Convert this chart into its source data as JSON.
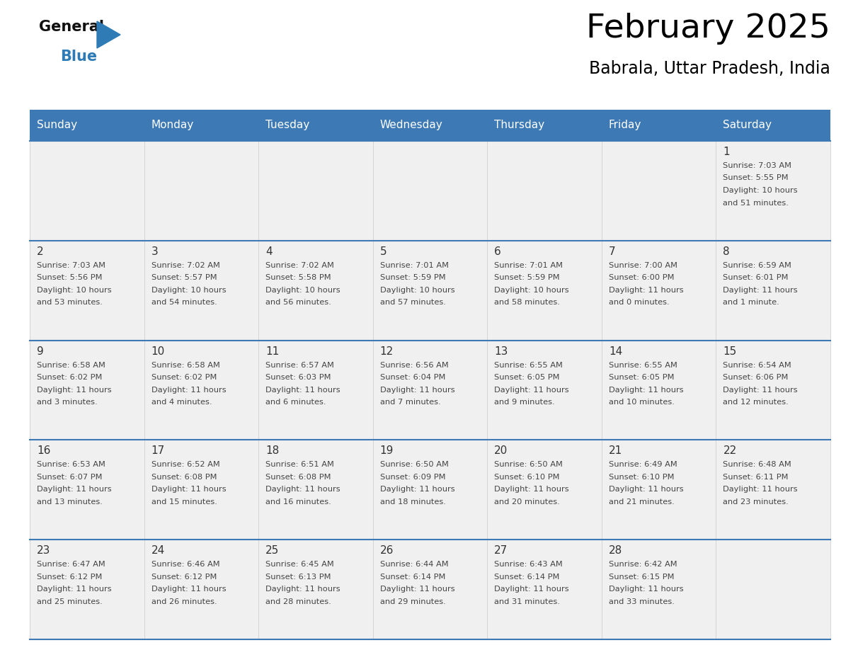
{
  "title": "February 2025",
  "subtitle": "Babrala, Uttar Pradesh, India",
  "days_of_week": [
    "Sunday",
    "Monday",
    "Tuesday",
    "Wednesday",
    "Thursday",
    "Friday",
    "Saturday"
  ],
  "header_bg_color": "#3d7ab5",
  "header_text_color": "#ffffff",
  "cell_bg_color": "#f0f0f0",
  "separator_color": "#3d7ab5",
  "day_num_color": "#333333",
  "text_color": "#444444",
  "logo_general_color": "#111111",
  "logo_blue_color": "#2e7bb5",
  "calendar": [
    [
      null,
      null,
      null,
      null,
      null,
      null,
      {
        "day": 1,
        "sunrise": "7:03 AM",
        "sunset": "5:55 PM",
        "daylight": "10 hours and 51 minutes."
      }
    ],
    [
      {
        "day": 2,
        "sunrise": "7:03 AM",
        "sunset": "5:56 PM",
        "daylight": "10 hours and 53 minutes."
      },
      {
        "day": 3,
        "sunrise": "7:02 AM",
        "sunset": "5:57 PM",
        "daylight": "10 hours and 54 minutes."
      },
      {
        "day": 4,
        "sunrise": "7:02 AM",
        "sunset": "5:58 PM",
        "daylight": "10 hours and 56 minutes."
      },
      {
        "day": 5,
        "sunrise": "7:01 AM",
        "sunset": "5:59 PM",
        "daylight": "10 hours and 57 minutes."
      },
      {
        "day": 6,
        "sunrise": "7:01 AM",
        "sunset": "5:59 PM",
        "daylight": "10 hours and 58 minutes."
      },
      {
        "day": 7,
        "sunrise": "7:00 AM",
        "sunset": "6:00 PM",
        "daylight": "11 hours and 0 minutes."
      },
      {
        "day": 8,
        "sunrise": "6:59 AM",
        "sunset": "6:01 PM",
        "daylight": "11 hours and 1 minute."
      }
    ],
    [
      {
        "day": 9,
        "sunrise": "6:58 AM",
        "sunset": "6:02 PM",
        "daylight": "11 hours and 3 minutes."
      },
      {
        "day": 10,
        "sunrise": "6:58 AM",
        "sunset": "6:02 PM",
        "daylight": "11 hours and 4 minutes."
      },
      {
        "day": 11,
        "sunrise": "6:57 AM",
        "sunset": "6:03 PM",
        "daylight": "11 hours and 6 minutes."
      },
      {
        "day": 12,
        "sunrise": "6:56 AM",
        "sunset": "6:04 PM",
        "daylight": "11 hours and 7 minutes."
      },
      {
        "day": 13,
        "sunrise": "6:55 AM",
        "sunset": "6:05 PM",
        "daylight": "11 hours and 9 minutes."
      },
      {
        "day": 14,
        "sunrise": "6:55 AM",
        "sunset": "6:05 PM",
        "daylight": "11 hours and 10 minutes."
      },
      {
        "day": 15,
        "sunrise": "6:54 AM",
        "sunset": "6:06 PM",
        "daylight": "11 hours and 12 minutes."
      }
    ],
    [
      {
        "day": 16,
        "sunrise": "6:53 AM",
        "sunset": "6:07 PM",
        "daylight": "11 hours and 13 minutes."
      },
      {
        "day": 17,
        "sunrise": "6:52 AM",
        "sunset": "6:08 PM",
        "daylight": "11 hours and 15 minutes."
      },
      {
        "day": 18,
        "sunrise": "6:51 AM",
        "sunset": "6:08 PM",
        "daylight": "11 hours and 16 minutes."
      },
      {
        "day": 19,
        "sunrise": "6:50 AM",
        "sunset": "6:09 PM",
        "daylight": "11 hours and 18 minutes."
      },
      {
        "day": 20,
        "sunrise": "6:50 AM",
        "sunset": "6:10 PM",
        "daylight": "11 hours and 20 minutes."
      },
      {
        "day": 21,
        "sunrise": "6:49 AM",
        "sunset": "6:10 PM",
        "daylight": "11 hours and 21 minutes."
      },
      {
        "day": 22,
        "sunrise": "6:48 AM",
        "sunset": "6:11 PM",
        "daylight": "11 hours and 23 minutes."
      }
    ],
    [
      {
        "day": 23,
        "sunrise": "6:47 AM",
        "sunset": "6:12 PM",
        "daylight": "11 hours and 25 minutes."
      },
      {
        "day": 24,
        "sunrise": "6:46 AM",
        "sunset": "6:12 PM",
        "daylight": "11 hours and 26 minutes."
      },
      {
        "day": 25,
        "sunrise": "6:45 AM",
        "sunset": "6:13 PM",
        "daylight": "11 hours and 28 minutes."
      },
      {
        "day": 26,
        "sunrise": "6:44 AM",
        "sunset": "6:14 PM",
        "daylight": "11 hours and 29 minutes."
      },
      {
        "day": 27,
        "sunrise": "6:43 AM",
        "sunset": "6:14 PM",
        "daylight": "11 hours and 31 minutes."
      },
      {
        "day": 28,
        "sunrise": "6:42 AM",
        "sunset": "6:15 PM",
        "daylight": "11 hours and 33 minutes."
      },
      null
    ]
  ],
  "fig_width": 11.88,
  "fig_height": 9.18,
  "dpi": 100
}
